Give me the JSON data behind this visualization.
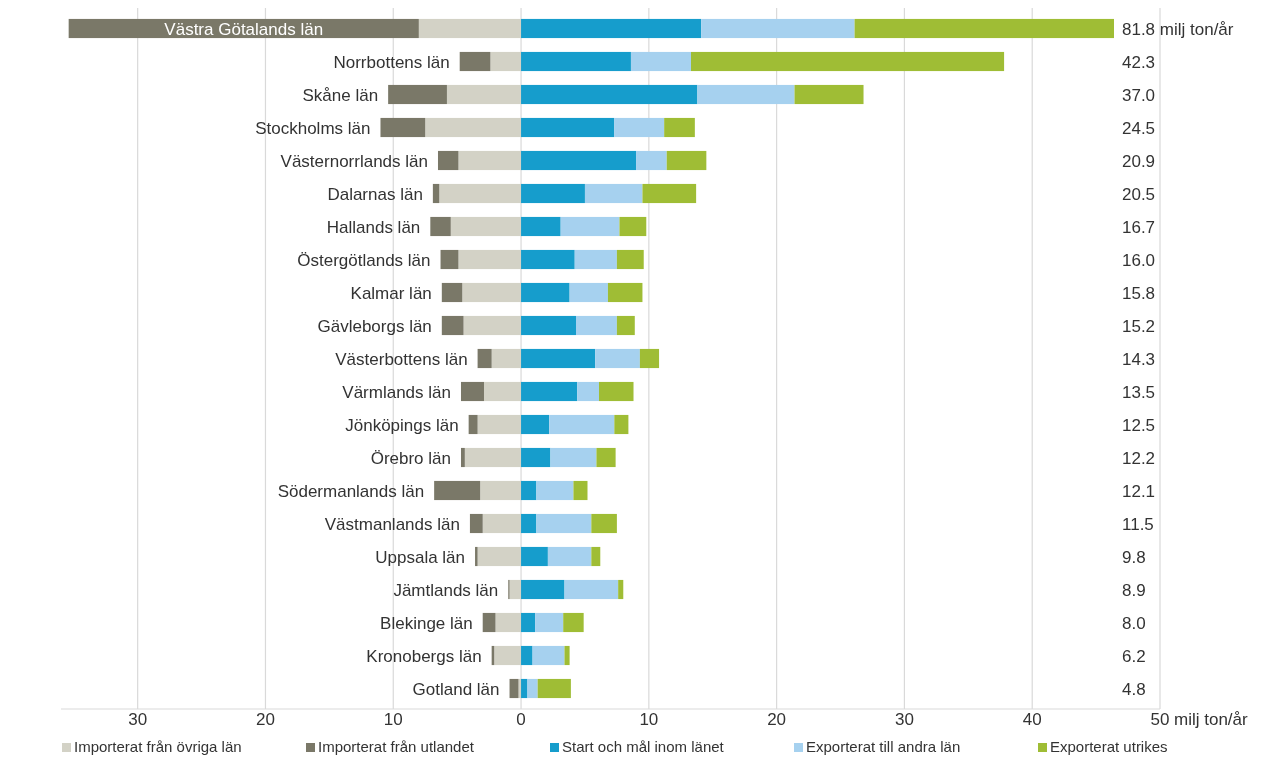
{
  "chart_data": {
    "type": "bar",
    "orientation": "horizontal",
    "stacked": true,
    "xlabel": "milj ton/år",
    "legend": "bottom",
    "grid": "x",
    "categories": [
      "Västra Götalands län",
      "Norrbottens län",
      "Skåne län",
      "Stockholms län",
      "Västernorrlands län",
      "Dalarnas län",
      "Hallands län",
      "Östergötlands län",
      "Kalmar län",
      "Gävleborgs län",
      "Västerbottens län",
      "Värmlands län",
      "Jönköpings län",
      "Örebro län",
      "Södermanlands län",
      "Västmanlands län",
      "Uppsala län",
      "Jämtlands län",
      "Blekinge län",
      "Kronobergs län",
      "Gotland län"
    ],
    "xlim": [
      -36,
      50
    ],
    "xticks": [
      {
        "value": -30,
        "label": "30"
      },
      {
        "value": -20,
        "label": "20"
      },
      {
        "value": -10,
        "label": "10"
      },
      0,
      10,
      20,
      30,
      40,
      50
    ],
    "series": [
      {
        "name": "Importerat från övriga län",
        "color": "#d3d2c6",
        "values": [
          -8.0,
          -2.4,
          -5.8,
          -7.5,
          -4.9,
          -6.4,
          -5.5,
          -4.9,
          -4.6,
          -4.5,
          -2.3,
          -2.9,
          -3.4,
          -4.4,
          -3.2,
          -3.0,
          -3.4,
          -0.9,
          -2.0,
          -2.1,
          -0.2
        ]
      },
      {
        "name": "Importerat från utlandet",
        "color": "#7a7868",
        "values": [
          -27.4,
          -2.4,
          -4.6,
          -3.5,
          -1.6,
          -0.5,
          -1.6,
          -1.4,
          -1.6,
          -1.7,
          -1.1,
          -1.8,
          -0.7,
          -0.3,
          -3.6,
          -1.0,
          -0.2,
          -0.1,
          -1.0,
          -0.2,
          -0.7
        ]
      },
      {
        "name": "Start och mål inom länet",
        "color": "#169dcc",
        "values": [
          14.1,
          8.6,
          13.8,
          7.3,
          9.0,
          5.0,
          3.1,
          4.2,
          3.8,
          4.3,
          5.8,
          4.4,
          2.2,
          2.3,
          1.2,
          1.2,
          2.1,
          3.4,
          1.1,
          0.9,
          0.5
        ]
      },
      {
        "name": "Exporterat till andra län",
        "color": "#a6d1ef",
        "values": [
          12.0,
          4.7,
          7.6,
          3.9,
          2.4,
          4.5,
          4.6,
          3.3,
          3.0,
          3.2,
          3.5,
          1.7,
          5.1,
          3.6,
          2.9,
          4.3,
          3.4,
          4.2,
          2.2,
          2.5,
          0.8
        ]
      },
      {
        "name": "Exporterat utrikes",
        "color": "#9fbd35",
        "values": [
          20.3,
          24.5,
          5.4,
          2.4,
          3.1,
          4.2,
          2.1,
          2.1,
          2.7,
          1.4,
          1.5,
          2.7,
          1.1,
          1.5,
          1.1,
          2.0,
          0.7,
          0.4,
          1.6,
          0.4,
          2.6
        ]
      }
    ],
    "annotations": [
      "81.8 milj ton/år",
      "42.3",
      "37.0",
      "24.5",
      "20.9",
      "20.5",
      "16.7",
      "16.0",
      "15.8",
      "15.2",
      "14.3",
      "13.5",
      "12.5",
      "12.2",
      "12.1",
      "11.5",
      "9.8",
      "8.9",
      "8.0",
      "6.2",
      "4.8"
    ]
  }
}
